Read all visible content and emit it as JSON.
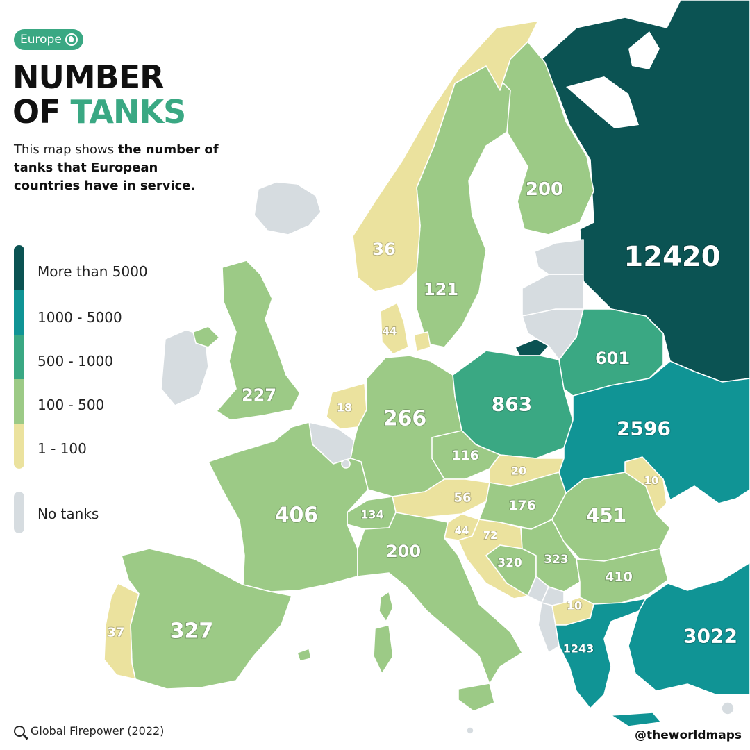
{
  "badge": "Europe",
  "title": {
    "line1": "NUMBER",
    "line2_pre": "OF ",
    "line2_accent": "TANKS"
  },
  "subtitle": {
    "plain": "This map shows ",
    "bold": "the number of tanks that European countries have in service."
  },
  "legend": [
    {
      "label": "More than 5000",
      "color": "#0b5353"
    },
    {
      "label": "1000 - 5000",
      "color": "#109495"
    },
    {
      "label": "500 - 1000",
      "color": "#3aa883"
    },
    {
      "label": "100 - 500",
      "color": "#9cca86"
    },
    {
      "label": "1 - 100",
      "color": "#ebe29e"
    }
  ],
  "no_data": {
    "label": "No tanks",
    "color": "#d6dce0"
  },
  "source": "Global Firepower (2022)",
  "credit": "@theworldmaps",
  "map_data": {
    "countries": [
      {
        "name": "Russia",
        "tanks": 12420
      },
      {
        "name": "Turkey",
        "tanks": 3022
      },
      {
        "name": "Ukraine",
        "tanks": 2596
      },
      {
        "name": "Greece",
        "tanks": 1243
      },
      {
        "name": "Poland",
        "tanks": 863
      },
      {
        "name": "Belarus",
        "tanks": 601
      },
      {
        "name": "Romania",
        "tanks": 451
      },
      {
        "name": "Bulgaria",
        "tanks": 410
      },
      {
        "name": "France",
        "tanks": 406
      },
      {
        "name": "Spain",
        "tanks": 327
      },
      {
        "name": "Serbia",
        "tanks": 323
      },
      {
        "name": "Bosnia and Herzegovina",
        "tanks": 320
      },
      {
        "name": "Germany",
        "tanks": 266
      },
      {
        "name": "United Kingdom",
        "tanks": 227
      },
      {
        "name": "Finland",
        "tanks": 200
      },
      {
        "name": "Italy",
        "tanks": 200
      },
      {
        "name": "Hungary",
        "tanks": 176
      },
      {
        "name": "Switzerland",
        "tanks": 134
      },
      {
        "name": "Sweden",
        "tanks": 121
      },
      {
        "name": "Czechia",
        "tanks": 116
      },
      {
        "name": "Croatia",
        "tanks": 72
      },
      {
        "name": "Austria",
        "tanks": 56
      },
      {
        "name": "Denmark",
        "tanks": 44
      },
      {
        "name": "Slovenia",
        "tanks": 44
      },
      {
        "name": "Portugal",
        "tanks": 37
      },
      {
        "name": "Norway",
        "tanks": 36
      },
      {
        "name": "Slovakia",
        "tanks": 20
      },
      {
        "name": "Netherlands",
        "tanks": 18
      },
      {
        "name": "Moldova",
        "tanks": 10
      },
      {
        "name": "North Macedonia",
        "tanks": 10
      },
      {
        "name": "Iceland",
        "tanks": 0
      },
      {
        "name": "Ireland",
        "tanks": 0
      },
      {
        "name": "Belgium",
        "tanks": 0
      },
      {
        "name": "Estonia",
        "tanks": 0
      },
      {
        "name": "Latvia",
        "tanks": 0
      },
      {
        "name": "Lithuania",
        "tanks": 0
      },
      {
        "name": "Albania",
        "tanks": 0
      },
      {
        "name": "Montenegro",
        "tanks": 0
      },
      {
        "name": "Kosovo",
        "tanks": 0
      },
      {
        "name": "Luxembourg",
        "tanks": 0
      },
      {
        "name": "Malta",
        "tanks": 0
      },
      {
        "name": "Cyprus",
        "tanks": 0
      }
    ]
  }
}
